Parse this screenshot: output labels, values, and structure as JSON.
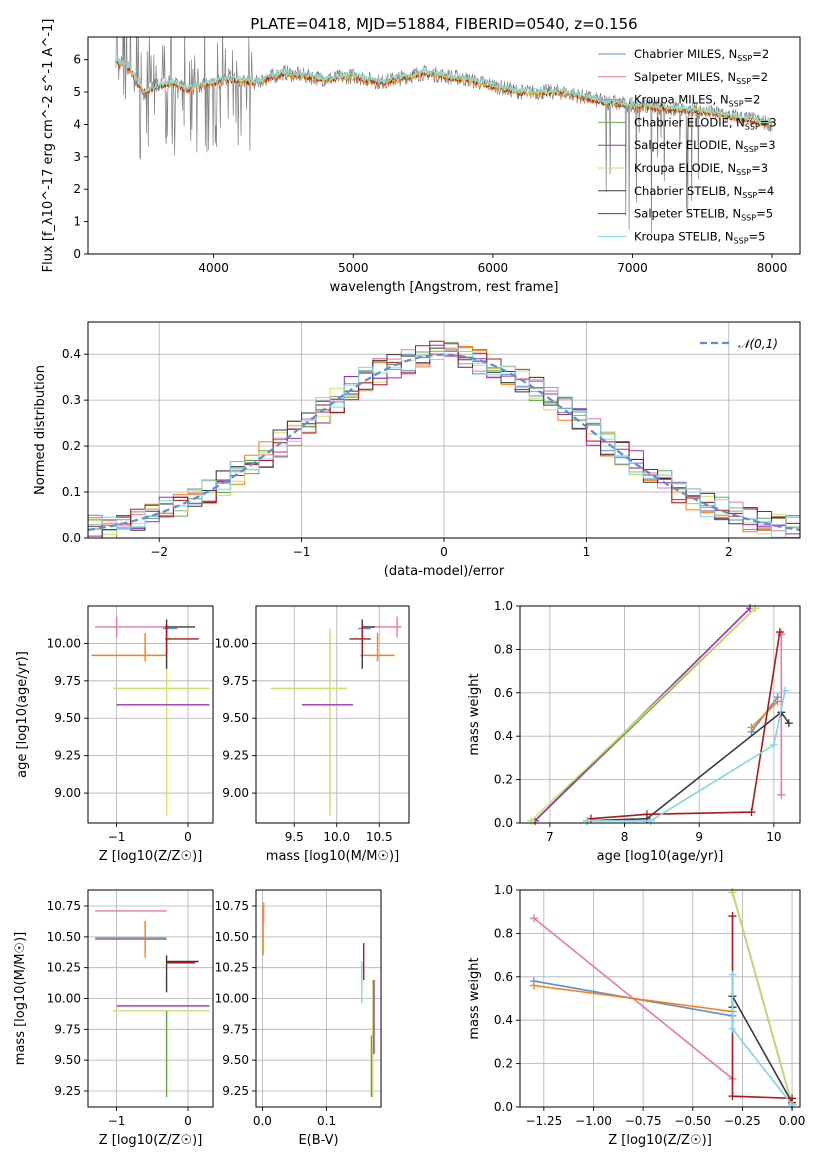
{
  "title": "PLATE=0418, MJD=51884, FIBERID=0540, z=0.156",
  "colors": {
    "chabrier_miles": "#5b8fd6",
    "salpeter_miles": "#e87aa8",
    "kroupa_miles": "#ff7f0e",
    "chabrier_elodie": "#6aa84f",
    "salpeter_elodie": "#9b2fb3",
    "kroupa_elodie": "#c9e265",
    "chabrier_stelib": "#3a3a3a",
    "salpeter_stelib": "#b11717",
    "kroupa_stelib": "#7fd7e6",
    "data": "#808080",
    "normal": "#5b8fd6"
  },
  "chart_data": [
    {
      "id": "spectrum",
      "type": "line",
      "xlabel": "wavelength [Angstrom, rest frame]",
      "ylabel": "Flux [f_λ10^-17 erg cm^-2 s^-1 A^-1]",
      "xlim": [
        3100,
        8200
      ],
      "ylim": [
        0,
        6.7
      ],
      "xticks": [
        "4000",
        "5000",
        "6000",
        "7000",
        "8000"
      ],
      "yticks": [
        "0",
        "1",
        "2",
        "3",
        "4",
        "5",
        "6"
      ],
      "grid": false,
      "legend_position": "right",
      "legend": [
        "Chabrier MILES, N_SSP=2",
        "Salpeter MILES, N_SSP=2",
        "Kroupa MILES, N_SSP=2",
        "Chabrier ELODIE, N_SSP=3",
        "Salpeter ELODIE, N_SSP=3",
        "Kroupa ELODIE, N_SSP=3",
        "Chabrier STELIB, N_SSP=4",
        "Salpeter STELIB, N_SSP=5",
        "Kroupa STELIB, N_SSP=5"
      ],
      "continuum": [
        [
          3300,
          6.0
        ],
        [
          3400,
          5.7
        ],
        [
          3500,
          5.0
        ],
        [
          3600,
          5.2
        ],
        [
          3700,
          5.3
        ],
        [
          3800,
          5.1
        ],
        [
          3900,
          5.2
        ],
        [
          4000,
          5.3
        ],
        [
          4100,
          5.4
        ],
        [
          4300,
          5.3
        ],
        [
          4500,
          5.6
        ],
        [
          4800,
          5.4
        ],
        [
          5000,
          5.5
        ],
        [
          5200,
          5.3
        ],
        [
          5500,
          5.6
        ],
        [
          5800,
          5.4
        ],
        [
          6000,
          5.2
        ],
        [
          6200,
          5.0
        ],
        [
          6500,
          5.0
        ],
        [
          6800,
          4.7
        ],
        [
          7000,
          4.6
        ],
        [
          7500,
          4.4
        ],
        [
          7800,
          4.2
        ],
        [
          8000,
          4.0
        ]
      ]
    },
    {
      "id": "residuals",
      "type": "histogram",
      "xlabel": "(data-model)/error",
      "ylabel": "Normed distribution",
      "xlim": [
        -2.5,
        2.5
      ],
      "ylim": [
        0,
        0.47
      ],
      "xticks": [
        "−2",
        "−1",
        "0",
        "1",
        "2"
      ],
      "yticks": [
        "0.0",
        "0.1",
        "0.2",
        "0.3",
        "0.4"
      ],
      "grid": true,
      "legend_position": "top-right",
      "legend": [
        "𝒩(0,1)"
      ],
      "bin_width": 0.1
    },
    {
      "id": "age_vs_Z",
      "type": "errorbar",
      "xlabel": "Z [log10(Z/Z☉)]",
      "ylabel": "age [log10(age/yr)]",
      "xlim": [
        -1.4,
        0.35
      ],
      "ylim": [
        8.8,
        10.25
      ],
      "xticks": [
        "−1",
        "0"
      ],
      "yticks": [
        "9.00",
        "9.25",
        "9.50",
        "9.75",
        "10.00"
      ],
      "grid": true,
      "points": [
        {
          "x": -0.3,
          "y": 10.1,
          "xerr": [
            0.05,
            0.15
          ],
          "yerr": [
            0.05,
            0.03
          ],
          "c": "chabrier_miles"
        },
        {
          "x": -1.0,
          "y": 10.11,
          "xerr": [
            0.3,
            0.7
          ],
          "yerr": [
            0.07,
            0.07
          ],
          "c": "salpeter_miles"
        },
        {
          "x": -0.6,
          "y": 9.92,
          "xerr": [
            0.75,
            0.3
          ],
          "yerr": [
            0.04,
            0.15
          ],
          "c": "kroupa_miles"
        },
        {
          "x": -0.3,
          "y": 9.7,
          "xerr": [
            0.75,
            0.6
          ],
          "yerr": [
            0.85,
            0.4
          ],
          "c": "kroupa_elodie"
        },
        {
          "x": -0.3,
          "y": 9.59,
          "xerr": [
            0.7,
            0.6
          ],
          "yerr": [
            0.0,
            0.0
          ],
          "c": "salpeter_elodie"
        },
        {
          "x": -0.3,
          "y": 10.11,
          "xerr": [
            0.02,
            0.4
          ],
          "yerr": [
            0.28,
            0.05
          ],
          "c": "chabrier_stelib"
        },
        {
          "x": -0.3,
          "y": 10.03,
          "xerr": [
            0.02,
            0.45
          ],
          "yerr": [
            0.1,
            0.1
          ],
          "c": "salpeter_stelib"
        }
      ]
    },
    {
      "id": "age_vs_mass",
      "type": "errorbar",
      "xlabel": "mass [log10(M/M☉)]",
      "xlim": [
        9.05,
        10.85
      ],
      "ylim": [
        8.8,
        10.25
      ],
      "xticks": [
        "9.5",
        "10.0",
        "10.5"
      ],
      "yticks": [
        "9.00",
        "9.25",
        "9.50",
        "9.75",
        "10.00"
      ],
      "grid": true,
      "points": [
        {
          "x": 10.3,
          "y": 10.1,
          "xerr": [
            0.05,
            0.1
          ],
          "yerr": [
            0.05,
            0.03
          ],
          "c": "chabrier_miles"
        },
        {
          "x": 10.71,
          "y": 10.11,
          "xerr": [
            0.4,
            0.05
          ],
          "yerr": [
            0.07,
            0.07
          ],
          "c": "salpeter_miles"
        },
        {
          "x": 10.48,
          "y": 9.92,
          "xerr": [
            0.2,
            0.2
          ],
          "yerr": [
            0.04,
            0.15
          ],
          "c": "kroupa_miles"
        },
        {
          "x": 9.92,
          "y": 9.7,
          "xerr": [
            0.7,
            0.2
          ],
          "yerr": [
            0.85,
            0.4
          ],
          "c": "kroupa_elodie"
        },
        {
          "x": 9.94,
          "y": 9.59,
          "xerr": [
            0.35,
            0.25
          ],
          "yerr": [
            0.0,
            0.0
          ],
          "c": "salpeter_elodie"
        },
        {
          "x": 10.3,
          "y": 10.11,
          "xerr": [
            0.0,
            0.15
          ],
          "yerr": [
            0.28,
            0.05
          ],
          "c": "chabrier_stelib"
        },
        {
          "x": 10.3,
          "y": 10.03,
          "xerr": [
            0.15,
            0.1
          ],
          "yerr": [
            0.1,
            0.1
          ],
          "c": "salpeter_stelib"
        }
      ]
    },
    {
      "id": "weight_vs_age",
      "type": "line",
      "xlabel": "age [log10(age/yr)]",
      "ylabel": "mass weight",
      "xlim": [
        6.6,
        10.35
      ],
      "ylim": [
        0,
        1.0
      ],
      "xticks": [
        "7",
        "8",
        "9",
        "10"
      ],
      "yticks": [
        "0.0",
        "0.2",
        "0.4",
        "0.6",
        "0.8",
        "1.0"
      ],
      "grid": true,
      "series": [
        {
          "c": "chabrier_miles",
          "x": [
            9.7,
            10.05
          ],
          "y": [
            0.42,
            0.58
          ]
        },
        {
          "c": "salpeter_miles",
          "x": [
            10.1,
            10.1
          ],
          "y": [
            0.13,
            0.87
          ]
        },
        {
          "c": "kroupa_miles",
          "x": [
            9.7,
            10.05
          ],
          "y": [
            0.44,
            0.56
          ]
        },
        {
          "c": "chabrier_elodie",
          "x": [
            6.8,
            9.75
          ],
          "y": [
            0.01,
            0.99
          ]
        },
        {
          "c": "salpeter_elodie",
          "x": [
            6.8,
            9.68
          ],
          "y": [
            0.01,
            0.99
          ]
        },
        {
          "c": "kroupa_elodie",
          "x": [
            6.75,
            9.75
          ],
          "y": [
            0.01,
            0.99
          ]
        },
        {
          "c": "chabrier_stelib",
          "x": [
            7.5,
            8.3,
            10.1,
            10.2
          ],
          "y": [
            0.01,
            0.02,
            0.51,
            0.46
          ]
        },
        {
          "c": "salpeter_stelib",
          "x": [
            7.55,
            8.3,
            9.7,
            10.08
          ],
          "y": [
            0.02,
            0.04,
            0.05,
            0.88
          ]
        },
        {
          "c": "kroupa_stelib",
          "x": [
            7.5,
            8.35,
            10.0,
            10.15
          ],
          "y": [
            0.01,
            0.01,
            0.36,
            0.61
          ]
        }
      ]
    },
    {
      "id": "mass_vs_Z",
      "type": "errorbar",
      "xlabel": "Z [log10(Z/Z☉)]",
      "ylabel": "mass [log10(M/M☉)]",
      "xlim": [
        -1.4,
        0.35
      ],
      "ylim": [
        9.12,
        10.88
      ],
      "xticks": [
        "−1",
        "0"
      ],
      "yticks": [
        "9.25",
        "9.50",
        "9.75",
        "10.00",
        "10.25",
        "10.50",
        "10.75"
      ],
      "grid": true,
      "points": [
        {
          "x": -0.3,
          "y": 10.3,
          "xerr": [
            0.0,
            0.45
          ],
          "yerr": [
            0.25,
            0.05
          ],
          "c": "chabrier_stelib"
        },
        {
          "x": -0.3,
          "y": 10.29,
          "xerr": [
            0.0,
            0.4
          ],
          "yerr": [
            0.0,
            0.0
          ],
          "c": "salpeter_stelib"
        },
        {
          "x": -1.0,
          "y": 10.71,
          "xerr": [
            0.3,
            0.7
          ],
          "yerr": [
            0.0,
            0.0
          ],
          "c": "salpeter_miles"
        },
        {
          "x": -0.6,
          "y": 10.48,
          "xerr": [
            0.7,
            0.3
          ],
          "yerr": [
            0.15,
            0.15
          ],
          "c": "kroupa_miles"
        },
        {
          "x": -0.6,
          "y": 10.49,
          "xerr": [
            0.7,
            0.3
          ],
          "yerr": [
            0.0,
            0.0
          ],
          "c": "chabrier_miles"
        },
        {
          "x": -0.3,
          "y": 9.94,
          "xerr": [
            0.7,
            0.6
          ],
          "yerr": [
            0.0,
            0.0
          ],
          "c": "salpeter_elodie"
        },
        {
          "x": -0.3,
          "y": 9.9,
          "xerr": [
            0.75,
            0.6
          ],
          "yerr": [
            0.6,
            0.0
          ],
          "c": "kroupa_elodie"
        },
        {
          "x": -0.3,
          "y": 9.9,
          "xerr": [
            0.0,
            0.0
          ],
          "yerr": [
            0.7,
            0.0
          ],
          "c": "chabrier_elodie"
        }
      ]
    },
    {
      "id": "mass_vs_ebv",
      "type": "errorbar",
      "xlabel": "E(B-V)",
      "xlim": [
        -0.01,
        0.185
      ],
      "ylim": [
        9.12,
        10.88
      ],
      "xticks": [
        "0.0",
        "0.1"
      ],
      "yticks": [
        "9.25",
        "9.50",
        "9.75",
        "10.00",
        "10.25",
        "10.50",
        "10.75"
      ],
      "grid": true,
      "points": [
        {
          "x": 0.001,
          "y": 10.55,
          "xerr": [
            0,
            0
          ],
          "yerr": [
            0.2,
            0.2
          ],
          "c": "kroupa_miles"
        },
        {
          "x": 0.002,
          "y": 10.7,
          "xerr": [
            0,
            0
          ],
          "yerr": [
            0.08,
            0.08
          ],
          "c": "salpeter_miles"
        },
        {
          "x": 0.155,
          "y": 10.13,
          "xerr": [
            0,
            0
          ],
          "yerr": [
            0.17,
            0.17
          ],
          "c": "kroupa_stelib"
        },
        {
          "x": 0.158,
          "y": 10.3,
          "xerr": [
            0,
            0
          ],
          "yerr": [
            0.15,
            0.15
          ],
          "c": "salpeter_stelib"
        },
        {
          "x": 0.172,
          "y": 9.6,
          "xerr": [
            0,
            0
          ],
          "yerr": [
            0.4,
            0.55
          ],
          "c": "kroupa_elodie"
        },
        {
          "x": 0.174,
          "y": 9.8,
          "xerr": [
            0,
            0
          ],
          "yerr": [
            0.25,
            0.35
          ],
          "c": "salpeter_elodie"
        },
        {
          "x": 0.17,
          "y": 9.4,
          "xerr": [
            0,
            0
          ],
          "yerr": [
            0.2,
            0.3
          ],
          "c": "chabrier_elodie"
        }
      ]
    },
    {
      "id": "weight_vs_Z",
      "type": "line",
      "xlabel": "Z [log10(Z/Z☉)]",
      "ylabel": "mass weight",
      "xlim": [
        -1.37,
        0.04
      ],
      "ylim": [
        0,
        1.0
      ],
      "xticks": [
        "−1.25",
        "−1.00",
        "−0.75",
        "−0.50",
        "−0.25",
        "0.00"
      ],
      "yticks": [
        "0.0",
        "0.2",
        "0.4",
        "0.6",
        "0.8",
        "1.0"
      ],
      "grid": true,
      "series": [
        {
          "c": "chabrier_miles",
          "x": [
            -1.3,
            -0.3
          ],
          "y": [
            0.58,
            0.42
          ]
        },
        {
          "c": "salpeter_miles",
          "x": [
            -1.3,
            -0.3
          ],
          "y": [
            0.87,
            0.13
          ]
        },
        {
          "c": "kroupa_miles",
          "x": [
            -1.3,
            -0.3
          ],
          "y": [
            0.56,
            0.44
          ]
        },
        {
          "c": "chabrier_elodie",
          "x": [
            -0.3,
            0.0
          ],
          "y": [
            0.99,
            0.01
          ]
        },
        {
          "c": "salpeter_elodie",
          "x": [
            -0.3,
            0.0
          ],
          "y": [
            0.99,
            0.01
          ]
        },
        {
          "c": "kroupa_elodie",
          "x": [
            -0.3,
            0.0
          ],
          "y": [
            0.99,
            0.01
          ]
        },
        {
          "c": "chabrier_stelib",
          "x": [
            -0.3,
            -0.3,
            0.0,
            0.0
          ],
          "y": [
            0.46,
            0.51,
            0.02,
            0.01
          ]
        },
        {
          "c": "salpeter_stelib",
          "x": [
            -0.3,
            -0.3,
            0.0,
            0.0
          ],
          "y": [
            0.88,
            0.05,
            0.04,
            0.02
          ]
        },
        {
          "c": "kroupa_stelib",
          "x": [
            -0.3,
            -0.3,
            0.0,
            0.0
          ],
          "y": [
            0.61,
            0.36,
            0.01,
            0.01
          ]
        }
      ]
    }
  ]
}
